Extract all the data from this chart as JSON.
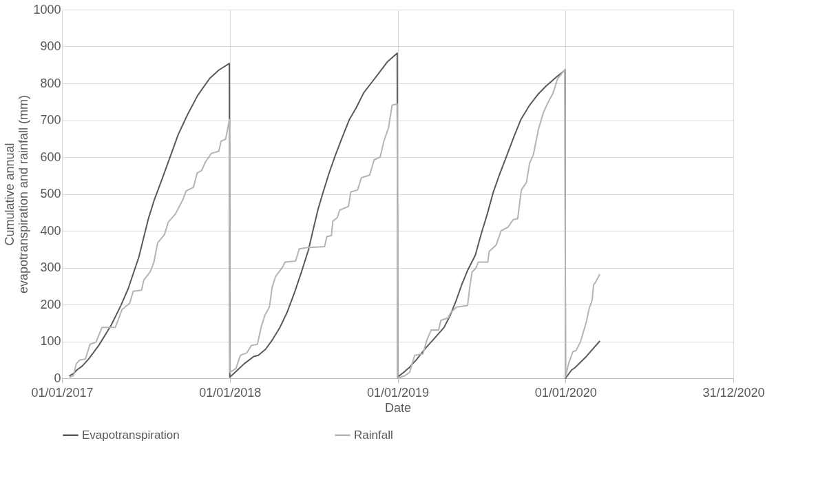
{
  "chart_data": {
    "type": "line",
    "xlabel": "Date",
    "ylabel": "Cumulative annual evapotranspiration and rainfall (mm)",
    "xlim": [
      "2017-01-01",
      "2020-12-31"
    ],
    "xticks": [
      {
        "value": "2017-01-01",
        "label": "01/01/2017"
      },
      {
        "value": "2018-01-01",
        "label": "01/01/2018"
      },
      {
        "value": "2019-01-01",
        "label": "01/01/2019"
      },
      {
        "value": "2020-01-01",
        "label": "01/01/2020"
      },
      {
        "value": "2020-12-31",
        "label": "31/12/2020"
      }
    ],
    "ylim": [
      0,
      1000
    ],
    "yticks": [
      0,
      100,
      200,
      300,
      400,
      500,
      600,
      700,
      800,
      900,
      1000
    ],
    "grid": true,
    "legend": "bottom",
    "marker": "none",
    "line_style": "solid",
    "series": [
      {
        "name": "Evapotranspiration",
        "color": "#595959",
        "x": [
          "2017-01-18",
          "2017-01-26",
          "2017-02-03",
          "2017-02-14",
          "2017-02-28",
          "2017-03-22",
          "2017-04-18",
          "2017-05-09",
          "2017-05-25",
          "2017-06-17",
          "2017-07-08",
          "2017-07-21",
          "2017-08-06",
          "2017-08-27",
          "2017-09-11",
          "2017-10-01",
          "2017-10-23",
          "2017-11-18",
          "2017-12-08",
          "2017-12-31",
          "2018-01-01",
          "2018-01-16",
          "2018-02-01",
          "2018-02-22",
          "2018-03-04",
          "2018-03-20",
          "2018-04-04",
          "2018-04-20",
          "2018-05-05",
          "2018-05-21",
          "2018-06-06",
          "2018-06-21",
          "2018-07-02",
          "2018-07-12",
          "2018-07-23",
          "2018-08-05",
          "2018-08-18",
          "2018-09-02",
          "2018-09-18",
          "2018-10-03",
          "2018-10-19",
          "2018-11-04",
          "2018-11-20",
          "2018-12-10",
          "2018-12-31",
          "2019-01-01",
          "2019-01-14",
          "2019-01-27",
          "2019-02-12",
          "2019-03-03",
          "2019-03-24",
          "2019-04-12",
          "2019-04-25",
          "2019-05-08",
          "2019-05-21",
          "2019-06-03",
          "2019-06-19",
          "2019-07-02",
          "2019-07-15",
          "2019-07-28",
          "2019-08-10",
          "2019-08-26",
          "2019-09-11",
          "2019-09-26",
          "2019-10-15",
          "2019-11-02",
          "2019-11-20",
          "2019-12-11",
          "2019-12-31",
          "2020-01-01",
          "2020-01-14",
          "2020-01-21",
          "2020-02-13",
          "2020-03-15"
        ],
        "values": [
          7,
          13,
          23,
          33,
          52,
          89,
          144,
          197,
          243,
          328,
          433,
          485,
          538,
          610,
          662,
          715,
          767,
          813,
          836,
          854,
          3,
          20,
          39,
          59,
          62,
          79,
          105,
          138,
          177,
          230,
          289,
          348,
          407,
          459,
          505,
          557,
          603,
          652,
          702,
          734,
          774,
          800,
          826,
          859,
          882,
          3,
          16,
          30,
          52,
          82,
          111,
          138,
          170,
          210,
          256,
          295,
          334,
          393,
          446,
          505,
          551,
          603,
          656,
          702,
          741,
          770,
          793,
          816,
          836,
          0,
          22,
          28,
          56,
          100
        ]
      },
      {
        "name": "Rainfall",
        "color": "#b4b4b4",
        "x": [
          "2017-01-18",
          "2017-01-26",
          "2017-02-01",
          "2017-02-08",
          "2017-02-21",
          "2017-03-03",
          "2017-03-16",
          "2017-03-29",
          "2017-04-27",
          "2017-05-12",
          "2017-05-28",
          "2017-06-05",
          "2017-06-23",
          "2017-06-28",
          "2017-07-12",
          "2017-07-20",
          "2017-07-28",
          "2017-08-12",
          "2017-08-20",
          "2017-09-05",
          "2017-09-21",
          "2017-09-28",
          "2017-10-14",
          "2017-10-22",
          "2017-11-01",
          "2017-11-09",
          "2017-11-22",
          "2017-12-08",
          "2017-12-13",
          "2017-12-23",
          "2017-12-31",
          "2018-01-01",
          "2018-01-14",
          "2018-01-24",
          "2018-02-07",
          "2018-02-17",
          "2018-03-02",
          "2018-03-10",
          "2018-03-18",
          "2018-03-28",
          "2018-04-03",
          "2018-04-10",
          "2018-04-26",
          "2018-05-01",
          "2018-05-24",
          "2018-06-01",
          "2018-06-17",
          "2018-07-26",
          "2018-07-31",
          "2018-08-10",
          "2018-08-13",
          "2018-08-23",
          "2018-08-28",
          "2018-09-16",
          "2018-09-21",
          "2018-10-06",
          "2018-10-14",
          "2018-11-01",
          "2018-11-11",
          "2018-11-24",
          "2018-12-02",
          "2018-12-12",
          "2018-12-20",
          "2018-12-31",
          "2019-01-01",
          "2019-01-17",
          "2019-01-27",
          "2019-02-07",
          "2019-02-25",
          "2019-03-05",
          "2019-03-15",
          "2019-03-31",
          "2019-04-05",
          "2019-04-21",
          "2019-04-26",
          "2019-05-09",
          "2019-06-02",
          "2019-06-07",
          "2019-06-12",
          "2019-06-20",
          "2019-06-25",
          "2019-07-16",
          "2019-07-19",
          "2019-08-03",
          "2019-08-14",
          "2019-08-29",
          "2019-09-09",
          "2019-09-19",
          "2019-09-27",
          "2019-10-08",
          "2019-10-15",
          "2019-10-23",
          "2019-10-29",
          "2019-11-03",
          "2019-11-14",
          "2019-11-24",
          "2019-12-05",
          "2019-12-15",
          "2019-12-31",
          "2020-01-01",
          "2020-01-08",
          "2020-01-17",
          "2020-01-24",
          "2020-02-03",
          "2020-02-08",
          "2020-02-16",
          "2020-02-21",
          "2020-02-28",
          "2020-03-02",
          "2020-03-07",
          "2020-03-15"
        ],
        "values": [
          3,
          7,
          39,
          49,
          52,
          92,
          98,
          138,
          138,
          187,
          203,
          236,
          239,
          266,
          289,
          315,
          367,
          390,
          423,
          446,
          485,
          508,
          518,
          557,
          564,
          587,
          610,
          616,
          643,
          649,
          702,
          16,
          26,
          62,
          69,
          89,
          92,
          138,
          170,
          193,
          246,
          275,
          302,
          315,
          318,
          351,
          354,
          357,
          384,
          387,
          426,
          436,
          456,
          466,
          505,
          511,
          544,
          551,
          593,
          600,
          643,
          679,
          741,
          744,
          0,
          7,
          16,
          62,
          66,
          102,
          131,
          131,
          157,
          164,
          177,
          193,
          197,
          249,
          289,
          298,
          315,
          315,
          344,
          361,
          400,
          410,
          430,
          433,
          511,
          531,
          584,
          606,
          643,
          675,
          721,
          748,
          774,
          813,
          838,
          3,
          41,
          72,
          75,
          100,
          122,
          156,
          187,
          212,
          253,
          262,
          281
        ]
      }
    ]
  }
}
